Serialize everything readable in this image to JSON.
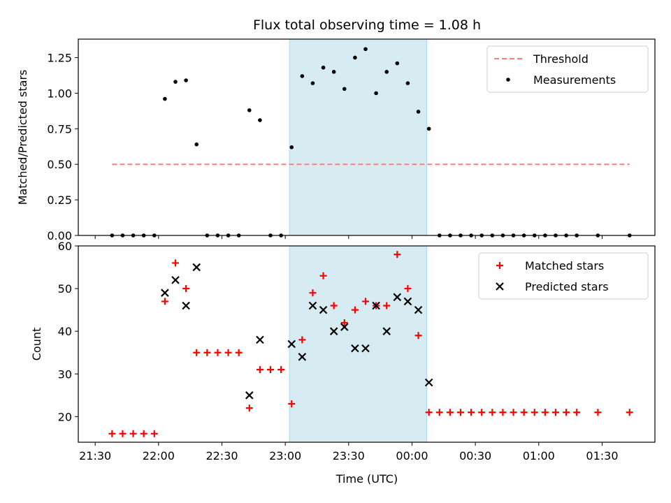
{
  "figure": {
    "title": "Flux total observing time = 1.08 h",
    "xlabel": "Time (UTC)",
    "x_ticks": [
      {
        "t": 0,
        "label": "21:30"
      },
      {
        "t": 30,
        "label": "22:00"
      },
      {
        "t": 60,
        "label": "22:30"
      },
      {
        "t": 90,
        "label": "23:00"
      },
      {
        "t": 120,
        "label": "23:30"
      },
      {
        "t": 150,
        "label": "00:00"
      },
      {
        "t": 180,
        "label": "00:30"
      },
      {
        "t": 210,
        "label": "01:00"
      },
      {
        "t": 240,
        "label": "01:30"
      }
    ],
    "x_unit_note": "x values are minutes after 21:30 UTC",
    "xlim": [
      -8,
      265
    ],
    "shaded_span": {
      "start": 92,
      "end": 157,
      "color": "#add8e6"
    }
  },
  "chart_data": [
    {
      "type": "scatter",
      "ylabel": "Matched/Predicted stars",
      "ylim": [
        0,
        1.38
      ],
      "y_ticks": [
        "0.00",
        "0.25",
        "0.50",
        "0.75",
        "1.00",
        "1.25"
      ],
      "threshold": {
        "name": "Threshold",
        "value": 0.5,
        "x_range": [
          8,
          253
        ],
        "color": "#ff7f7f",
        "style": "dashed"
      },
      "legend": {
        "position": "upper right",
        "entries": [
          "Threshold",
          "Measurements"
        ]
      },
      "series": [
        {
          "name": "Measurements",
          "color": "#000000",
          "x": [
            8,
            13,
            18,
            23,
            28,
            33,
            38,
            43,
            48,
            53,
            58,
            63,
            68,
            73,
            78,
            83,
            88,
            93,
            98,
            103,
            108,
            113,
            118,
            123,
            128,
            133,
            138,
            143,
            148,
            153,
            158,
            163,
            168,
            173,
            178,
            183,
            188,
            193,
            198,
            203,
            208,
            213,
            218,
            223,
            228,
            238,
            253
          ],
          "y": [
            0,
            0,
            0,
            0,
            0,
            0.96,
            1.08,
            1.09,
            0.64,
            0,
            0,
            0,
            0,
            0.88,
            0.81,
            0,
            0,
            0.62,
            1.12,
            1.07,
            1.18,
            1.15,
            1.03,
            1.25,
            1.31,
            1.0,
            1.15,
            1.21,
            1.07,
            0.87,
            0.75,
            0,
            0,
            0,
            0,
            0,
            0,
            0,
            0,
            0,
            0,
            0,
            0,
            0,
            0,
            0,
            0
          ]
        }
      ]
    },
    {
      "type": "scatter",
      "ylabel": "Count",
      "ylim": [
        14,
        60
      ],
      "y_ticks": [
        "20",
        "30",
        "40",
        "50",
        "60"
      ],
      "legend": {
        "position": "upper right",
        "entries": [
          "Matched stars",
          "Predicted stars"
        ]
      },
      "series": [
        {
          "name": "Matched stars",
          "color": "#ff0000",
          "marker": "plus",
          "x": [
            8,
            13,
            18,
            23,
            28,
            33,
            38,
            43,
            48,
            53,
            58,
            63,
            68,
            73,
            78,
            83,
            88,
            93,
            98,
            103,
            108,
            113,
            118,
            123,
            128,
            133,
            138,
            143,
            148,
            153,
            158,
            163,
            168,
            173,
            178,
            183,
            188,
            193,
            198,
            203,
            208,
            213,
            218,
            223,
            228,
            238,
            253
          ],
          "y": [
            16,
            16,
            16,
            16,
            16,
            47,
            56,
            50,
            35,
            35,
            35,
            35,
            35,
            22,
            31,
            31,
            31,
            23,
            38,
            49,
            53,
            46,
            42,
            45,
            47,
            46,
            46,
            58,
            50,
            39,
            21,
            21,
            21,
            21,
            21,
            21,
            21,
            21,
            21,
            21,
            21,
            21,
            21,
            21,
            21,
            21,
            21
          ]
        },
        {
          "name": "Predicted stars",
          "color": "#000000",
          "marker": "x",
          "x": [
            33,
            38,
            43,
            48,
            73,
            78,
            93,
            98,
            103,
            108,
            113,
            118,
            123,
            128,
            133,
            138,
            143,
            148,
            153,
            158
          ],
          "y": [
            49,
            52,
            46,
            55,
            25,
            38,
            37,
            34,
            46,
            45,
            40,
            41,
            36,
            36,
            46,
            40,
            48,
            47,
            45,
            28
          ]
        }
      ]
    }
  ]
}
